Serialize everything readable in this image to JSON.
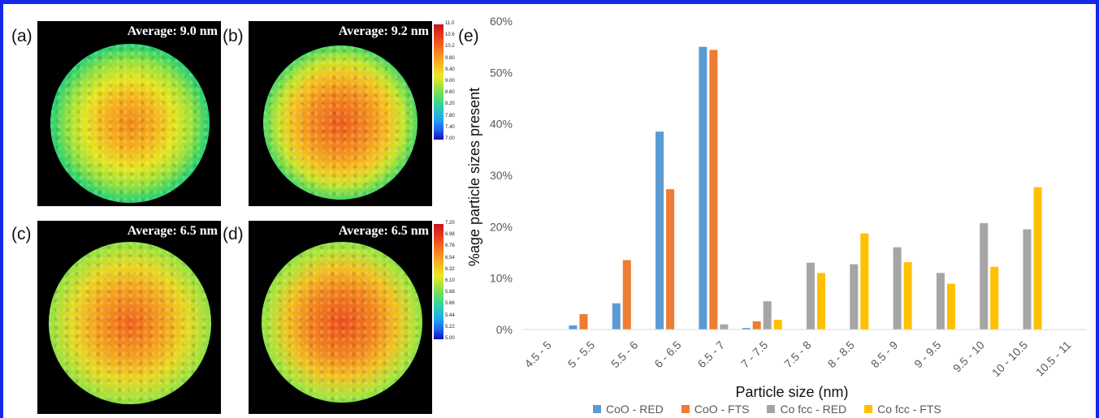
{
  "panels": [
    {
      "label": "(a)",
      "average": "Average: 9.0 nm"
    },
    {
      "label": "(b)",
      "average": "Average: 9.2 nm"
    },
    {
      "label": "(c)",
      "average": "Average: 6.5 nm"
    },
    {
      "label": "(d)",
      "average": "Average: 6.5 nm"
    }
  ],
  "colorbar_top": [
    "11.0",
    "10.6",
    "10.2",
    "9.80",
    "9.40",
    "9.00",
    "8.60",
    "8.20",
    "7.80",
    "7.40",
    "7.00"
  ],
  "colorbar_bottom": [
    "7.20",
    "6.98",
    "6.76",
    "6.54",
    "6.32",
    "6.10",
    "5.88",
    "5.66",
    "5.44",
    "5.22",
    "5.00"
  ],
  "colors": {
    "frame": "#1528e8",
    "CoO_RED": "#5b9bd5",
    "CoO_FTS": "#ed7d31",
    "Cofcc_RED": "#a5a5a5",
    "Cofcc_FTS": "#ffc000"
  },
  "chart_data": {
    "type": "bar",
    "panel_label": "(e)",
    "xlabel": "Particle size (nm)",
    "ylabel": "%age particle sizes present",
    "ylim": [
      0,
      60
    ],
    "yticks": [
      "0%",
      "10%",
      "20%",
      "30%",
      "40%",
      "50%",
      "60%"
    ],
    "grid": false,
    "legend_position": "bottom",
    "categories": [
      "4.5 - 5",
      "5 - 5.5",
      "5.5 - 6",
      "6 - 6.5",
      "6.5 - 7",
      "7 - 7.5",
      "7.5 - 8",
      "8 - 8.5",
      "8.5 - 9",
      "9 - 9.5",
      "9.5 - 10",
      "10 - 10.5",
      "10.5 - 11"
    ],
    "series": [
      {
        "name": "CoO - RED",
        "color": "#5b9bd5",
        "values": [
          0,
          0.8,
          5.1,
          38.5,
          55.0,
          0.3,
          0,
          0,
          0,
          0,
          0,
          0,
          0
        ]
      },
      {
        "name": "CoO - FTS",
        "color": "#ed7d31",
        "values": [
          0,
          3.0,
          13.5,
          27.3,
          54.4,
          1.6,
          0,
          0,
          0,
          0,
          0,
          0,
          0
        ]
      },
      {
        "name": "Co fcc - RED",
        "color": "#a5a5a5",
        "values": [
          0,
          0,
          0,
          0,
          1.0,
          5.5,
          13.0,
          12.7,
          16.0,
          11.0,
          20.7,
          19.5,
          0
        ]
      },
      {
        "name": "Co fcc - FTS",
        "color": "#ffc000",
        "values": [
          0,
          0,
          0,
          0,
          0,
          1.9,
          11.0,
          18.7,
          13.1,
          8.9,
          12.2,
          27.7,
          0
        ]
      }
    ]
  }
}
